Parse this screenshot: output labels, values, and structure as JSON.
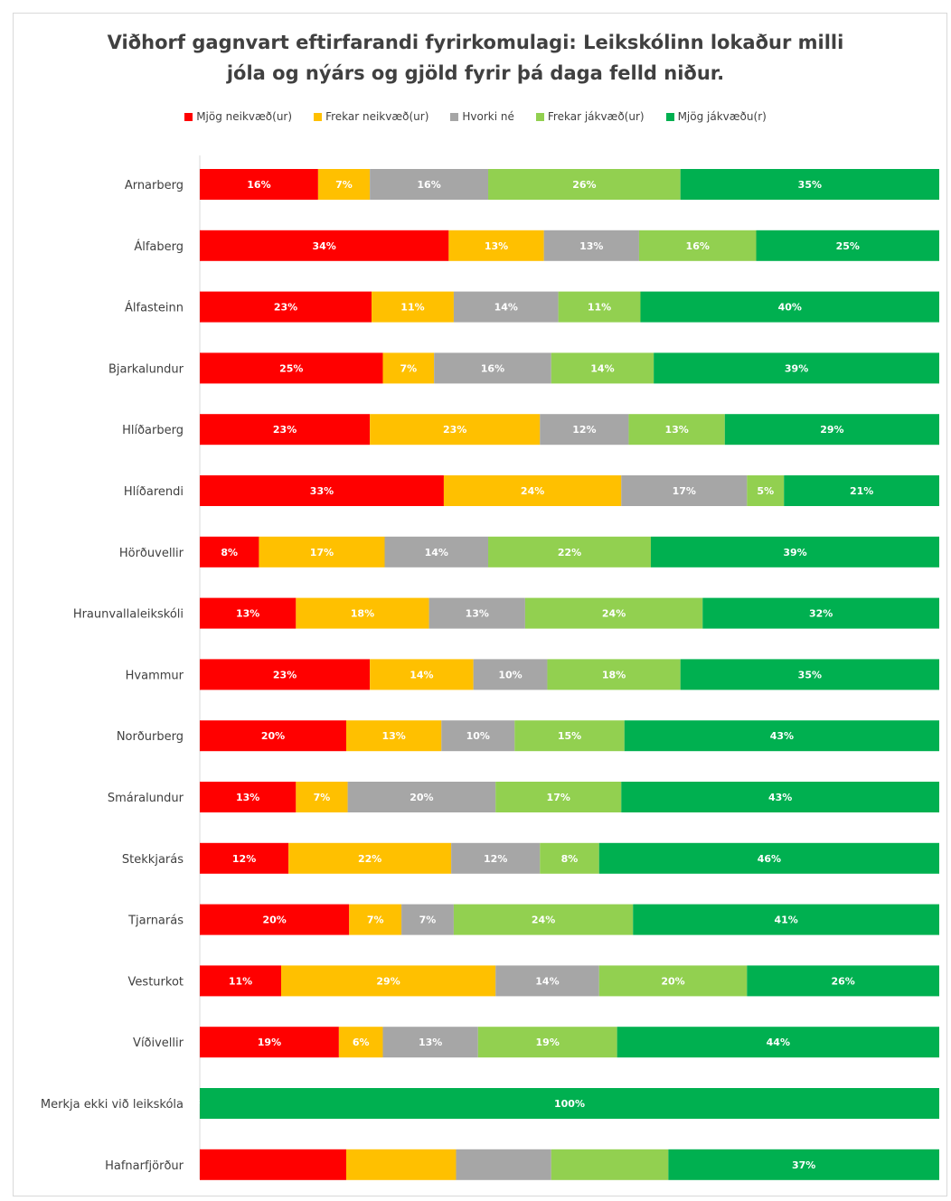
{
  "chart_data": {
    "type": "bar",
    "orientation": "horizontal",
    "stacked": true,
    "normalized": true,
    "title": "Viðhorf gagnvart eftirfarandi fyrirkomulagi: Leikskólinn lokaður milli jóla og nýárs og gjöld fyrir þá daga felld niður.",
    "title_lines": [
      "Viðhorf gagnvart eftirfarandi fyrirkomulagi: Leikskólinn lokaður milli",
      "jóla og nýárs og gjöld fyrir þá daga felld niður."
    ],
    "legend_position": "top",
    "grid": false,
    "categories": [
      "Arnarberg",
      "Álfaberg",
      "Álfasteinn",
      "Bjarkalundur",
      "Hlíðarberg",
      "Hlíðarendi",
      "Hörðuvellir",
      "Hraunvallaleikskóli",
      "Hvammur",
      "Norðurberg",
      "Smáralundur",
      "Stekkjarás",
      "Tjarnarás",
      "Vesturkot",
      "Víðivellir",
      "Merkja ekki við leikskóla",
      "Hafnarfjörður"
    ],
    "series": [
      {
        "name": "Mjög neikvæð(ur)",
        "color": "#ff0000",
        "values": [
          16,
          34,
          23,
          25,
          23,
          33,
          8,
          13,
          23,
          20,
          13,
          12,
          20,
          11,
          19,
          0,
          20
        ]
      },
      {
        "name": "Frekar neikvæð(ur)",
        "color": "#ffc000",
        "values": [
          7,
          13,
          11,
          7,
          23,
          24,
          17,
          18,
          14,
          13,
          7,
          22,
          7,
          29,
          6,
          0,
          15
        ]
      },
      {
        "name": "Hvorki né",
        "color": "#a6a6a6",
        "values": [
          16,
          13,
          14,
          16,
          12,
          17,
          14,
          13,
          10,
          10,
          20,
          12,
          7,
          14,
          13,
          0,
          13
        ]
      },
      {
        "name": "Frekar jákvæð(ur)",
        "color": "#92d050",
        "values": [
          26,
          16,
          11,
          14,
          13,
          5,
          22,
          24,
          18,
          15,
          17,
          8,
          24,
          20,
          19,
          0,
          16
        ]
      },
      {
        "name": "Mjög jákvæðu(r)",
        "color": "#00b050",
        "values": [
          35,
          25,
          40,
          39,
          29,
          21,
          39,
          32,
          35,
          43,
          43,
          46,
          41,
          26,
          44,
          100,
          37
        ]
      }
    ],
    "data_labels": [
      [
        "16%",
        "7%",
        "16%",
        "26%",
        "35%"
      ],
      [
        "34%",
        "13%",
        "13%",
        "16%",
        "25%"
      ],
      [
        "23%",
        "11%",
        "14%",
        "11%",
        "40%"
      ],
      [
        "25%",
        "7%",
        "16%",
        "14%",
        "39%"
      ],
      [
        "23%",
        "23%",
        "12%",
        "13%",
        "29%"
      ],
      [
        "33%",
        "24%",
        "17%",
        "5%",
        "21%"
      ],
      [
        "8%",
        "17%",
        "14%",
        "22%",
        "39%"
      ],
      [
        "13%",
        "18%",
        "13%",
        "24%",
        "32%"
      ],
      [
        "23%",
        "14%",
        "10%",
        "18%",
        "35%"
      ],
      [
        "20%",
        "13%",
        "10%",
        "15%",
        "43%"
      ],
      [
        "13%",
        "7%",
        "20%",
        "17%",
        "43%"
      ],
      [
        "12%",
        "22%",
        "12%",
        "8%",
        "46%"
      ],
      [
        "20%",
        "7%",
        "7%",
        "24%",
        "41%"
      ],
      [
        "11%",
        "29%",
        "14%",
        "20%",
        "26%"
      ],
      [
        "19%",
        "6%",
        "13%",
        "19%",
        "44%"
      ],
      [
        "%",
        "",
        "",
        "",
        "100%"
      ],
      [
        "",
        "",
        "",
        "",
        "37%"
      ]
    ]
  }
}
